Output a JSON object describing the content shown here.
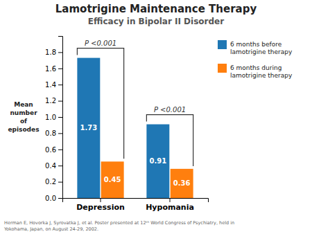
{
  "chart_data": {
    "type": "bar",
    "title": "Lamotrigine Maintenance Therapy",
    "subtitle": "Efficacy in Bipolar II Disorder",
    "categories": [
      "Depression",
      "Hypomania"
    ],
    "series": [
      {
        "name": "6 months before\nlamotrigine therapy",
        "values": [
          1.73,
          0.91
        ]
      },
      {
        "name": "6 months during\nlamotrigine therapy",
        "values": [
          0.45,
          0.36
        ]
      }
    ],
    "ylabel": "Mean\nnumber\nof\nepisodes",
    "ylim": [
      0,
      2.0
    ],
    "yticks": [
      {
        "value": 0.0,
        "label": "0.0"
      },
      0.2,
      0.4,
      0.6,
      0.8,
      {
        "value": 1.0,
        "label": "1.0"
      },
      1.2,
      1.4,
      1.6,
      1.8
    ],
    "data_labels": true,
    "grid": false,
    "legend": "upper right",
    "annotations": [
      {
        "text": "P <0.001",
        "category": "Depression"
      },
      {
        "text": "P <0.001",
        "category": "Hypomania"
      }
    ],
    "footnote": "Herman E, Hovorka J, Syrovatka J, et al. Poster presented at 12ᵗʰ World Congress of Psychiatry, held in\nYokohama, Japan, on August 24-29, 2002."
  }
}
